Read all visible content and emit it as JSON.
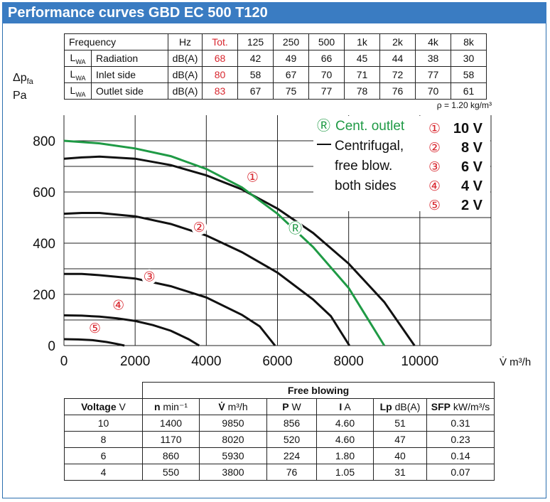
{
  "title": "Performance curves GBD EC 500 T120",
  "noise_table": {
    "header": {
      "label": "Frequency",
      "unit": "Hz",
      "total": "Tot.",
      "bands": [
        "125",
        "250",
        "500",
        "1k",
        "2k",
        "4k",
        "8k"
      ]
    },
    "lwa_symbol": "L",
    "lwa_sub": "WA",
    "rows": [
      {
        "label": "Radiation",
        "unit": "dB(A)",
        "total": "68",
        "values": [
          "42",
          "49",
          "66",
          "45",
          "44",
          "38",
          "30"
        ]
      },
      {
        "label": "Inlet side",
        "unit": "dB(A)",
        "total": "80",
        "values": [
          "58",
          "67",
          "70",
          "71",
          "72",
          "77",
          "58"
        ]
      },
      {
        "label": "Outlet side",
        "unit": "dB(A)",
        "total": "83",
        "values": [
          "67",
          "75",
          "77",
          "78",
          "76",
          "70",
          "61"
        ]
      }
    ]
  },
  "density_note": "ρ = 1.20 kg/m³",
  "y_axis": {
    "symbol": "Δp",
    "sub": "fa",
    "unit": "Pa"
  },
  "colors": {
    "title_bar": "#3a7cc2",
    "red": "#d8262e",
    "green": "#1f9a45",
    "black": "#111111"
  },
  "chart_data": {
    "type": "line",
    "xlabel": "V̇ m³/h",
    "ylabel": "Δpfa Pa",
    "xlim": [
      0,
      12000
    ],
    "ylim": [
      0,
      800
    ],
    "x_ticks": [
      0,
      2000,
      4000,
      6000,
      8000,
      10000
    ],
    "y_ticks": [
      0,
      200,
      400,
      600,
      800
    ],
    "grid": true,
    "legend": {
      "cent_outlet": {
        "marker": "Ⓡ",
        "label": "Cent. outlet"
      },
      "centrifugal": [
        "Centrifugal,",
        "free blow.",
        "both sides"
      ],
      "voltages": [
        {
          "marker": "①",
          "label": "10 V"
        },
        {
          "marker": "②",
          "label": "8 V"
        },
        {
          "marker": "③",
          "label": "6 V"
        },
        {
          "marker": "④",
          "label": "4 V"
        },
        {
          "marker": "⑤",
          "label": "2 V"
        }
      ]
    },
    "series": [
      {
        "marker": "①",
        "color": "#111111",
        "label_at": [
          5300,
          640
        ],
        "points": [
          [
            0,
            730
          ],
          [
            500,
            735
          ],
          [
            1000,
            738
          ],
          [
            2000,
            730
          ],
          [
            3000,
            705
          ],
          [
            4000,
            665
          ],
          [
            5000,
            610
          ],
          [
            6000,
            535
          ],
          [
            7000,
            440
          ],
          [
            8000,
            320
          ],
          [
            9000,
            170
          ],
          [
            9850,
            0
          ]
        ]
      },
      {
        "marker": "②",
        "color": "#111111",
        "label_at": [
          3800,
          445
        ],
        "points": [
          [
            0,
            515
          ],
          [
            500,
            518
          ],
          [
            1000,
            518
          ],
          [
            2000,
            505
          ],
          [
            3000,
            475
          ],
          [
            4000,
            430
          ],
          [
            5000,
            365
          ],
          [
            6000,
            285
          ],
          [
            7000,
            180
          ],
          [
            7500,
            115
          ],
          [
            8020,
            0
          ]
        ]
      },
      {
        "marker": "③",
        "color": "#111111",
        "label_at": [
          2400,
          252
        ],
        "points": [
          [
            0,
            280
          ],
          [
            500,
            280
          ],
          [
            1000,
            275
          ],
          [
            2000,
            262
          ],
          [
            3000,
            232
          ],
          [
            4000,
            188
          ],
          [
            5000,
            120
          ],
          [
            5500,
            75
          ],
          [
            5930,
            0
          ]
        ]
      },
      {
        "marker": "④",
        "color": "#111111",
        "label_at": [
          1530,
          140
        ],
        "points": [
          [
            0,
            118
          ],
          [
            500,
            117
          ],
          [
            1000,
            113
          ],
          [
            1500,
            106
          ],
          [
            2000,
            96
          ],
          [
            2500,
            80
          ],
          [
            3000,
            58
          ],
          [
            3500,
            25
          ],
          [
            3800,
            0
          ]
        ]
      },
      {
        "marker": "⑤",
        "color": "#111111",
        "label_at": [
          870,
          50
        ],
        "points": [
          [
            0,
            25
          ],
          [
            400,
            24
          ],
          [
            800,
            21
          ],
          [
            1200,
            14
          ],
          [
            1500,
            6
          ],
          [
            1700,
            0
          ]
        ]
      },
      {
        "marker": "Ⓡ",
        "color": "#1f9a45",
        "label_at": [
          6500,
          440
        ],
        "points": [
          [
            0,
            800
          ],
          [
            1000,
            790
          ],
          [
            2000,
            770
          ],
          [
            3000,
            740
          ],
          [
            4000,
            690
          ],
          [
            5000,
            618
          ],
          [
            6000,
            515
          ],
          [
            7000,
            385
          ],
          [
            8000,
            225
          ],
          [
            9000,
            0
          ]
        ]
      }
    ]
  },
  "free_blowing": {
    "group_header": "Free blowing",
    "columns": [
      {
        "name": "Voltage",
        "unit": "V"
      },
      {
        "name": "n",
        "unit": "min⁻¹"
      },
      {
        "name": "V̇",
        "unit": "m³/h"
      },
      {
        "name": "P",
        "unit": "W"
      },
      {
        "name": "I",
        "unit": "A"
      },
      {
        "name": "Lp",
        "unit": "dB(A)"
      },
      {
        "name": "SFP",
        "unit": "kW/m³/s"
      }
    ],
    "rows": [
      [
        "10",
        "1400",
        "9850",
        "856",
        "4.60",
        "51",
        "0.31"
      ],
      [
        "8",
        "1170",
        "8020",
        "520",
        "4.60",
        "47",
        "0.23"
      ],
      [
        "6",
        "860",
        "5930",
        "224",
        "1.80",
        "40",
        "0.14"
      ],
      [
        "4",
        "550",
        "3800",
        "76",
        "1.05",
        "31",
        "0.07"
      ]
    ]
  }
}
